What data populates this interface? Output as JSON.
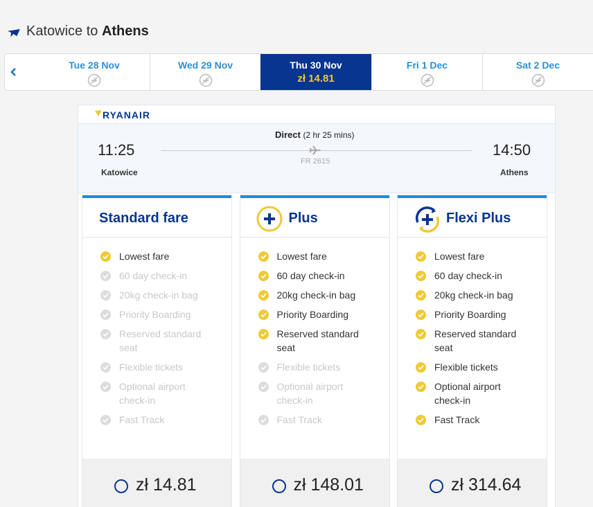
{
  "header": {
    "prefix": "Katowice to",
    "destination": "Athens"
  },
  "dates": [
    {
      "label": "Tue 28 Nov"
    },
    {
      "label": "Wed 29 Nov"
    },
    {
      "label": "Thu 30 Nov",
      "price": "zł 14.81",
      "selected": true
    },
    {
      "label": "Fri 1 Dec"
    },
    {
      "label": "Sat 2 Dec"
    }
  ],
  "airline": "RYANAIR",
  "flight": {
    "type": "Direct",
    "duration": "(2 hr 25 mins)",
    "depart_time": "11:25",
    "arrive_time": "14:50",
    "origin": "Katowice",
    "destination": "Athens",
    "number": "FR 2615"
  },
  "fares": [
    {
      "name": "Standard fare",
      "price": "zł 14.81",
      "features": [
        {
          "text": "Lowest fare",
          "included": true
        },
        {
          "text": "60 day check-in",
          "included": false
        },
        {
          "text": "20kg check-in bag",
          "included": false
        },
        {
          "text": "Priority Boarding",
          "included": false
        },
        {
          "text": "Reserved standard seat",
          "included": false
        },
        {
          "text": "Flexible tickets",
          "included": false
        },
        {
          "text": "Optional airport check-in",
          "included": false
        },
        {
          "text": "Fast Track",
          "included": false
        }
      ]
    },
    {
      "name": "Plus",
      "price": "zł 148.01",
      "features": [
        {
          "text": "Lowest fare",
          "included": true
        },
        {
          "text": "60 day check-in",
          "included": true
        },
        {
          "text": "20kg check-in bag",
          "included": true
        },
        {
          "text": "Priority Boarding",
          "included": true
        },
        {
          "text": "Reserved standard seat",
          "included": true
        },
        {
          "text": "Flexible tickets",
          "included": false
        },
        {
          "text": "Optional airport check-in",
          "included": false
        },
        {
          "text": "Fast Track",
          "included": false
        }
      ]
    },
    {
      "name": "Flexi Plus",
      "price": "zł 314.64",
      "features": [
        {
          "text": "Lowest fare",
          "included": true
        },
        {
          "text": "60 day check-in",
          "included": true
        },
        {
          "text": "20kg check-in bag",
          "included": true
        },
        {
          "text": "Priority Boarding",
          "included": true
        },
        {
          "text": "Reserved standard seat",
          "included": true
        },
        {
          "text": "Flexible tickets",
          "included": true
        },
        {
          "text": "Optional airport check-in",
          "included": true
        },
        {
          "text": "Fast Track",
          "included": true
        }
      ]
    }
  ]
}
